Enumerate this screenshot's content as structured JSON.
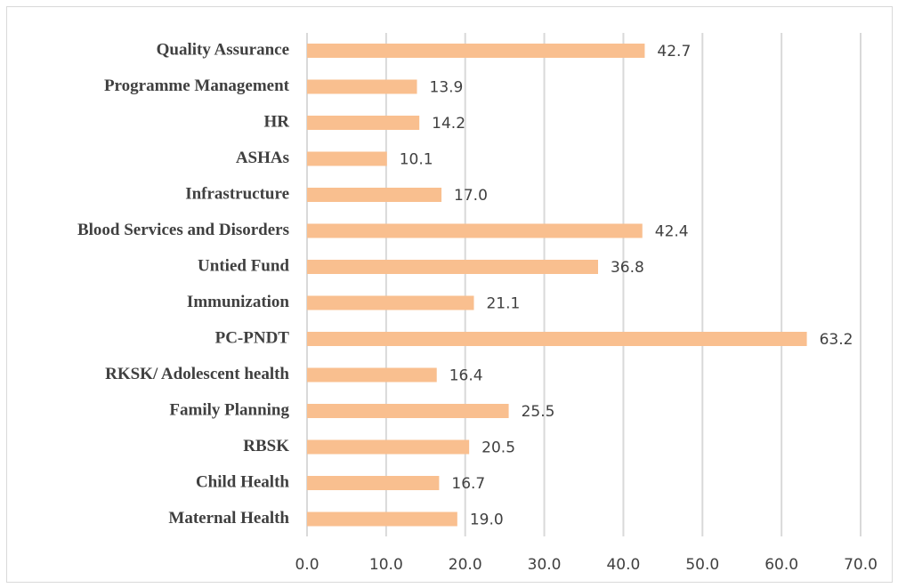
{
  "chart_data": {
    "type": "hbar",
    "categories": [
      "Quality Assurance",
      "Programme Management",
      "HR",
      "ASHAs",
      "Infrastructure",
      "Blood Services and Disorders",
      "Untied Fund",
      "Immunization",
      "PC-PNDT",
      "RKSK/ Adolescent health",
      "Family Planning",
      "RBSK",
      "Child Health",
      "Maternal Health"
    ],
    "values": [
      42.7,
      13.9,
      14.2,
      10.1,
      17,
      42.4,
      36.8,
      21.1,
      63.2,
      16.4,
      25.5,
      20.5,
      16.7,
      19
    ],
    "value_labels": [
      "42.7",
      "13.9",
      "14.2",
      "10.1",
      "17.0",
      "42.4",
      "36.8",
      "21.1",
      "63.2",
      "16.4",
      "25.5",
      "20.5",
      "16.7",
      "19.0"
    ],
    "color": "#f9bf8f",
    "xlim": [
      0,
      70
    ],
    "xticks": [
      {
        "value": 0,
        "label": "0.0"
      },
      {
        "value": 10,
        "label": "10.0"
      },
      {
        "value": 20,
        "label": "20.0"
      },
      {
        "value": 30,
        "label": "30.0"
      },
      {
        "value": 40,
        "label": "40.0"
      },
      {
        "value": 50,
        "label": "50.0"
      },
      {
        "value": 60,
        "label": "60.0"
      },
      {
        "value": 70,
        "label": "70.0"
      }
    ],
    "grid": true
  }
}
